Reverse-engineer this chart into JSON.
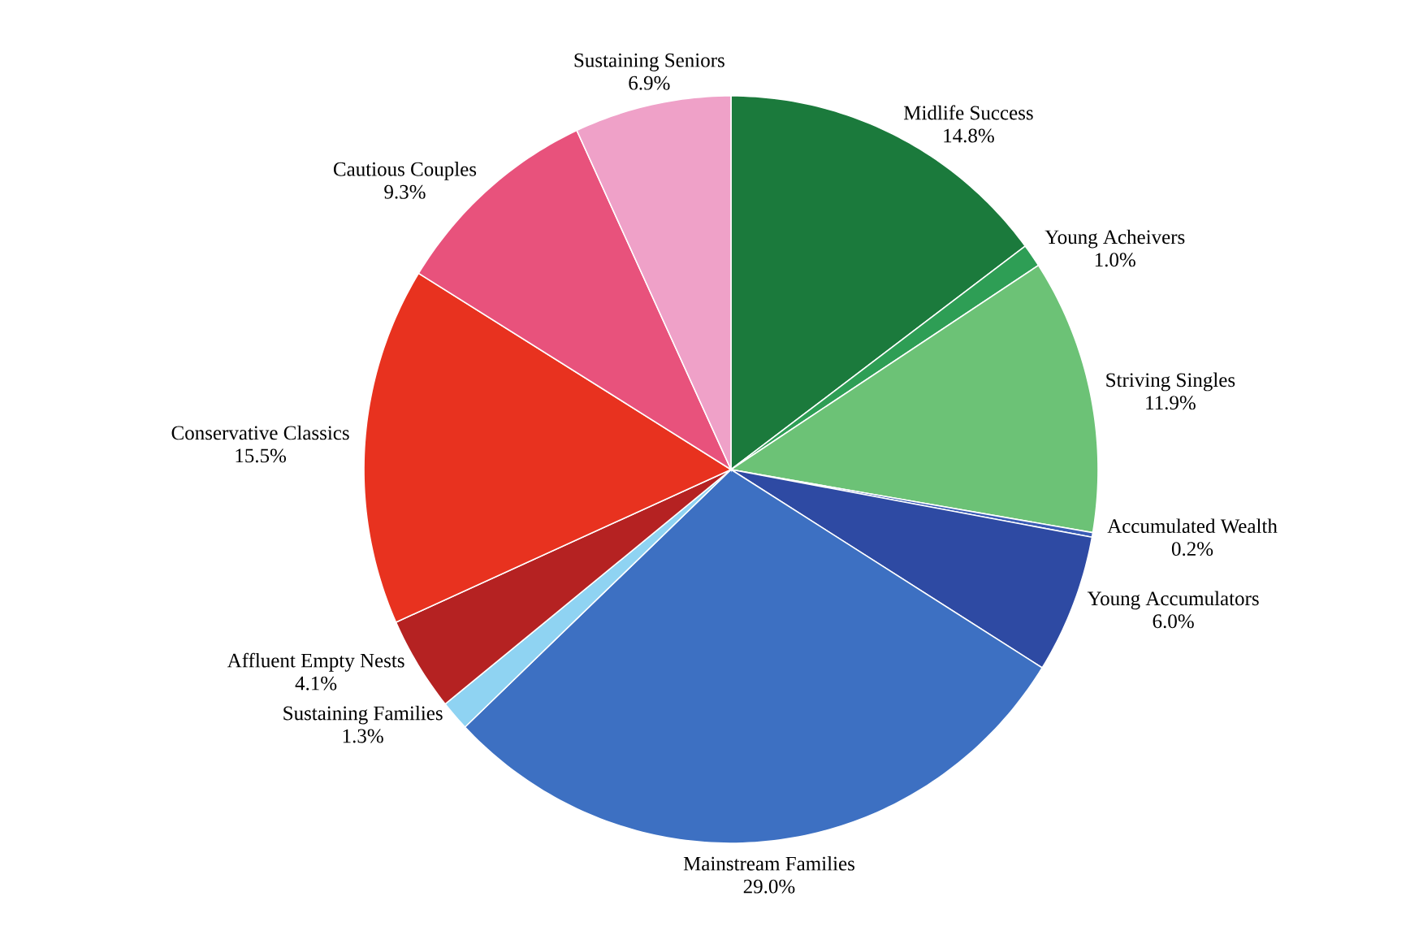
{
  "chart_data": {
    "type": "pie",
    "categories": [
      "Midlife Success",
      "Young Acheivers",
      "Striving Singles",
      "Accumulated Wealth",
      "Young Accumulators",
      "Mainstream Families",
      "Sustaining Families",
      "Affluent Empty Nests",
      "Conservative Classics",
      "Cautious Couples",
      "Sustaining Seniors"
    ],
    "values": [
      14.8,
      1.0,
      11.9,
      0.2,
      6.0,
      29.0,
      1.3,
      4.1,
      15.5,
      9.3,
      6.9
    ],
    "value_labels": [
      "14.8%",
      "1.0%",
      "11.9%",
      "0.2%",
      "6.0%",
      "29.0%",
      "1.3%",
      "4.1%",
      "15.5%",
      "9.3%",
      "6.9%"
    ],
    "colors": [
      "#1b7a3c",
      "#2e9e55",
      "#6cc276",
      "#3a5cb5",
      "#2e4aa3",
      "#3d70c2",
      "#8fd3f2",
      "#b52222",
      "#e8321f",
      "#e8527c",
      "#efa1c8"
    ]
  }
}
